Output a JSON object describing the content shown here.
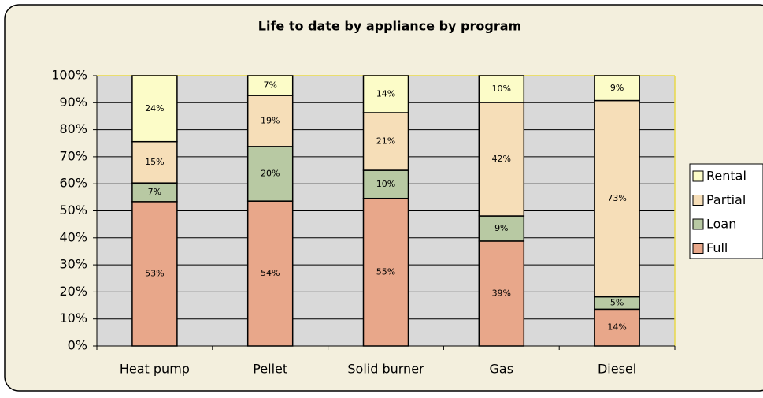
{
  "chart_data": {
    "type": "bar",
    "stacked": true,
    "title": "Life to date by appliance by program",
    "categories": [
      "Heat pump",
      "Pellet",
      "Solid burner",
      "Gas",
      "Diesel"
    ],
    "series": [
      {
        "name": "Full",
        "color": "#e8a78a",
        "values": [
          53.4,
          53.6,
          54.6,
          38.8,
          13.6
        ],
        "value_labels": [
          "53%",
          "54%",
          "55%",
          "39%",
          "14%"
        ]
      },
      {
        "name": "Loan",
        "color": "#b8c9a3",
        "values": [
          6.9,
          20.2,
          10.4,
          9.3,
          4.6
        ],
        "value_labels": [
          "7%",
          "20%",
          "10%",
          "9%",
          "5%"
        ]
      },
      {
        "name": "Partial",
        "color": "#f6deb8",
        "values": [
          15.3,
          18.9,
          21.3,
          42.0,
          72.6
        ],
        "value_labels": [
          "15%",
          "19%",
          "21%",
          "42%",
          "73%"
        ]
      },
      {
        "name": "Rental",
        "color": "#fcfcc8",
        "values": [
          24.4,
          7.3,
          13.7,
          9.9,
          9.2
        ],
        "value_labels": [
          "24%",
          "7%",
          "14%",
          "10%",
          "9%"
        ]
      }
    ],
    "ylim": [
      0,
      100
    ],
    "yticks": [
      {
        "value": 0,
        "label": "0%"
      },
      {
        "value": 10,
        "label": "10%"
      },
      {
        "value": 20,
        "label": "20%"
      },
      {
        "value": 30,
        "label": "30%"
      },
      {
        "value": 40,
        "label": "40%"
      },
      {
        "value": 50,
        "label": "50%"
      },
      {
        "value": 60,
        "label": "60%"
      },
      {
        "value": 70,
        "label": "70%"
      },
      {
        "value": 80,
        "label": "80%"
      },
      {
        "value": 90,
        "label": "90%"
      },
      {
        "value": 100,
        "label": "100%"
      }
    ],
    "grid": true,
    "legend": "right"
  }
}
